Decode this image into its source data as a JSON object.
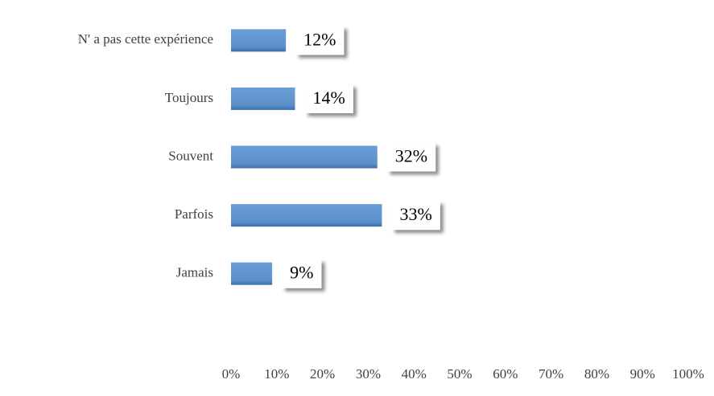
{
  "chart_data": {
    "type": "bar",
    "orientation": "horizontal",
    "categories": [
      "N' a pas cette expérience",
      "Toujours",
      "Souvent",
      "Parfois",
      "Jamais"
    ],
    "values": [
      12,
      14,
      32,
      33,
      9
    ],
    "value_labels": [
      "12%",
      "14%",
      "32%",
      "33%",
      "9%"
    ],
    "color": "#5b8fc9",
    "xlim": [
      0,
      100
    ],
    "xticks": [
      {
        "value": 0,
        "label": "0%"
      },
      {
        "value": 10,
        "label": "10%"
      },
      {
        "value": 20,
        "label": "20%"
      },
      {
        "value": 30,
        "label": "30%"
      },
      {
        "value": 40,
        "label": "40%"
      },
      {
        "value": 50,
        "label": "50%"
      },
      {
        "value": 60,
        "label": "60%"
      },
      {
        "value": 70,
        "label": "70%"
      },
      {
        "value": 80,
        "label": "80%"
      },
      {
        "value": 90,
        "label": "90%"
      },
      {
        "value": 100,
        "label": "100%"
      }
    ],
    "grid": false
  }
}
